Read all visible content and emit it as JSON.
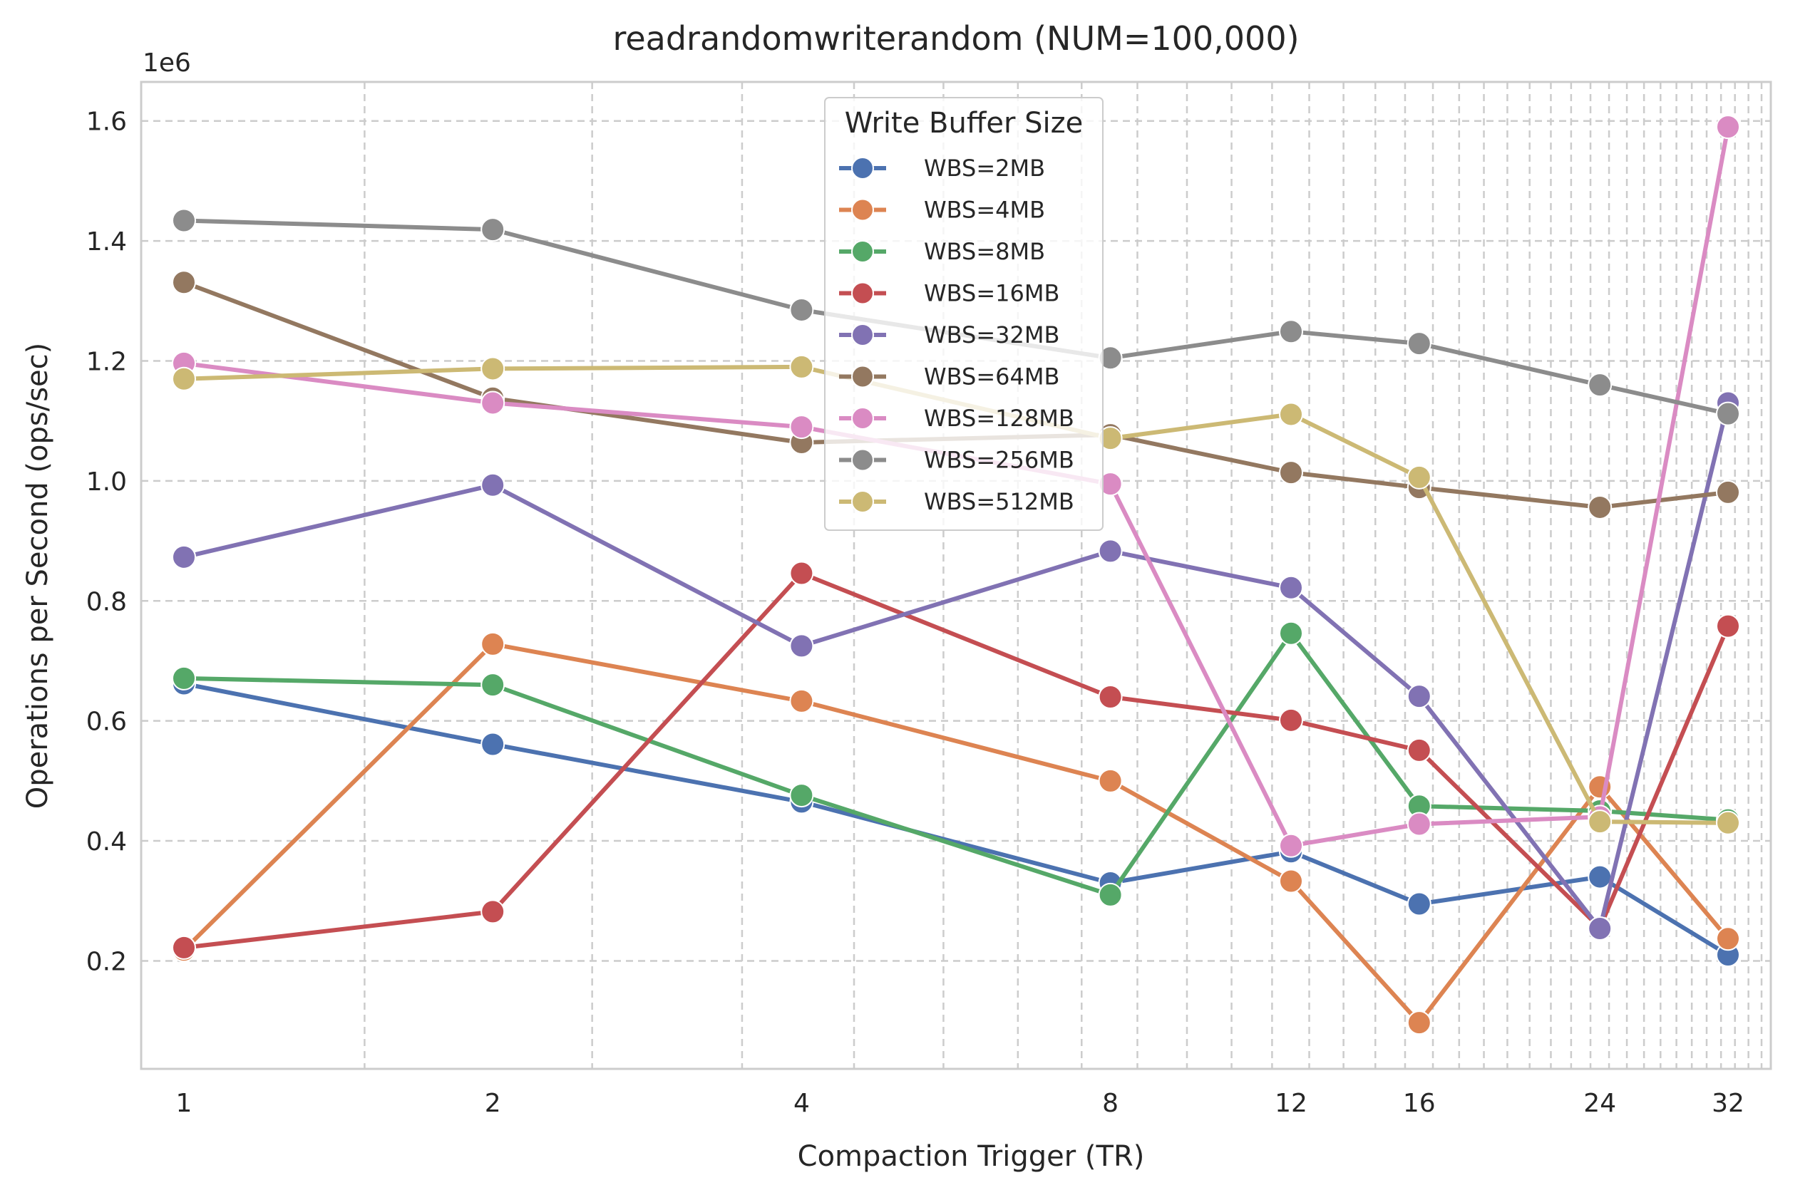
{
  "chart_data": {
    "type": "line",
    "title": "readrandomwriterandom (NUM=100,000)",
    "xlabel": "Compaction Trigger (TR)",
    "ylabel": "Operations per Second (ops/sec)",
    "y_offset_label": "1e6",
    "x_scale": "log2",
    "x": [
      1,
      2,
      4,
      8,
      12,
      16,
      24,
      32
    ],
    "x_tick_labels": [
      "1",
      "2",
      "4",
      "8",
      "12",
      "16",
      "24",
      "32"
    ],
    "y_ticks": [
      0.2,
      0.4,
      0.6,
      0.8,
      1.0,
      1.2,
      1.4,
      1.6
    ],
    "y_tick_labels": [
      "0.2",
      "0.4",
      "0.6",
      "0.8",
      "1.0",
      "1.2",
      "1.4",
      "1.6"
    ],
    "y_unit_multiplier": 1000000,
    "ylim": [
      0.02,
      1.665
    ],
    "grid": true,
    "legend_title": "Write Buffer Size",
    "legend_position": "top-center",
    "series": [
      {
        "name": "WBS=2MB",
        "color": "#4c72b0",
        "values": [
          0.662,
          0.561,
          0.465,
          0.33,
          0.382,
          0.295,
          0.34,
          0.21
        ]
      },
      {
        "name": "WBS=4MB",
        "color": "#dd8452",
        "values": [
          0.218,
          0.728,
          0.633,
          0.5,
          0.333,
          0.097,
          0.49,
          0.237
        ]
      },
      {
        "name": "WBS=8MB",
        "color": "#55a868",
        "values": [
          0.671,
          0.66,
          0.476,
          0.31,
          0.746,
          0.458,
          0.45,
          0.435
        ]
      },
      {
        "name": "WBS=16MB",
        "color": "#c44e52",
        "values": [
          0.222,
          0.282,
          0.846,
          0.64,
          0.601,
          0.551,
          0.255,
          0.758
        ]
      },
      {
        "name": "WBS=32MB",
        "color": "#8172b3",
        "values": [
          0.873,
          0.993,
          0.725,
          0.883,
          0.822,
          0.641,
          0.254,
          1.13
        ]
      },
      {
        "name": "WBS=64MB",
        "color": "#937860",
        "values": [
          1.331,
          1.138,
          1.064,
          1.077,
          1.014,
          0.989,
          0.956,
          0.981
        ]
      },
      {
        "name": "WBS=128MB",
        "color": "#da8bc3",
        "values": [
          1.196,
          1.13,
          1.09,
          0.995,
          0.392,
          0.428,
          0.44,
          1.59
        ]
      },
      {
        "name": "WBS=256MB",
        "color": "#8c8c8c",
        "values": [
          1.434,
          1.419,
          1.285,
          1.205,
          1.249,
          1.229,
          1.16,
          1.112
        ]
      },
      {
        "name": "WBS=512MB",
        "color": "#ccb974",
        "values": [
          1.17,
          1.187,
          1.19,
          1.071,
          1.111,
          1.006,
          0.432,
          0.43
        ]
      }
    ]
  }
}
